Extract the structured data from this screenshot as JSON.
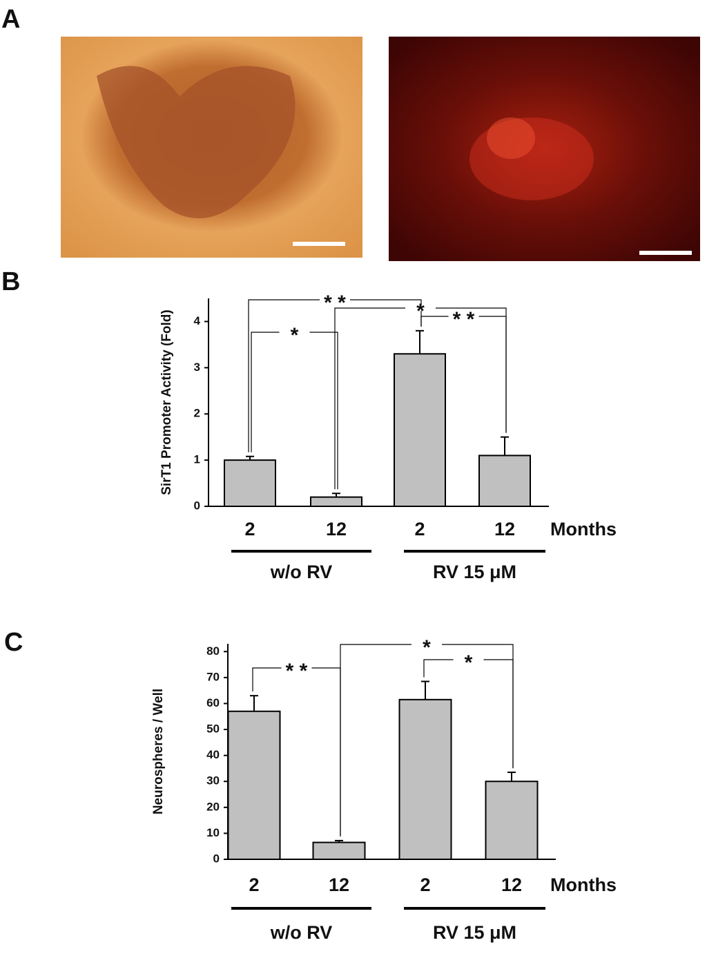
{
  "panel_labels": [
    "A",
    "B",
    "C"
  ],
  "chart_data": [
    {
      "type": "bar",
      "y_label": "SirT1 Promoter Activity (Fold)",
      "x_unit": "Months",
      "categories": [
        "2",
        "12",
        "2",
        "12"
      ],
      "groups": [
        {
          "name": "w/o RV",
          "categories": [
            0,
            1
          ]
        },
        {
          "name": "RV 15 μM",
          "categories": [
            2,
            3
          ]
        }
      ],
      "values": [
        1.0,
        0.2,
        3.3,
        1.1
      ],
      "errors": [
        0.08,
        0.08,
        0.5,
        0.4
      ],
      "color": "#c0c0c0",
      "ylim": [
        0,
        4.5
      ],
      "yticks": [
        0,
        1,
        2,
        3,
        4
      ],
      "significance": [
        {
          "pair": [
            0,
            2
          ],
          "label": "* *"
        },
        {
          "pair": [
            0,
            1
          ],
          "label": "*"
        },
        {
          "pair": [
            1,
            3
          ],
          "label": "*"
        },
        {
          "pair": [
            2,
            3
          ],
          "label": "* *"
        }
      ]
    },
    {
      "type": "bar",
      "y_label": "Neurospheres / Well",
      "x_unit": "Months",
      "categories": [
        "2",
        "12",
        "2",
        "12"
      ],
      "groups": [
        {
          "name": "w/o RV",
          "categories": [
            0,
            1
          ]
        },
        {
          "name": "RV 15 μM",
          "categories": [
            2,
            3
          ]
        }
      ],
      "values": [
        57,
        6.5,
        61.5,
        30
      ],
      "errors": [
        6,
        0.7,
        7,
        3.5
      ],
      "color": "#c0c0c0",
      "ylim": [
        0,
        83
      ],
      "yticks": [
        0,
        10,
        20,
        30,
        40,
        50,
        60,
        70,
        80
      ],
      "significance": [
        {
          "pair": [
            0,
            1
          ],
          "label": "* *"
        },
        {
          "pair": [
            1,
            3
          ],
          "label": "*"
        },
        {
          "pair": [
            2,
            3
          ],
          "label": "*"
        }
      ]
    }
  ]
}
